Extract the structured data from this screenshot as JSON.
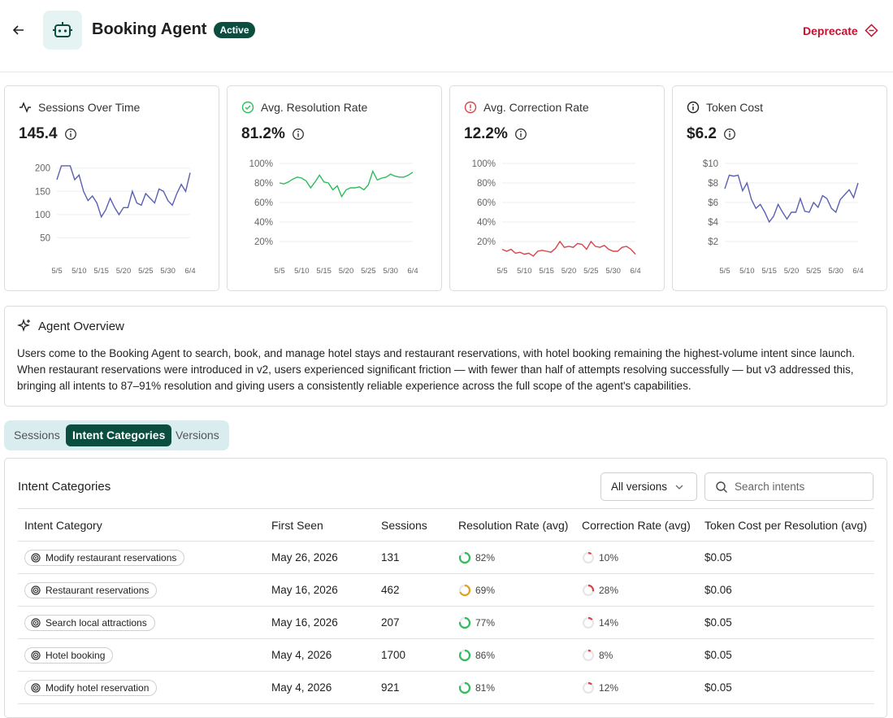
{
  "header": {
    "title": "Booking Agent",
    "status": "Active",
    "action": "Deprecate"
  },
  "cards": [
    {
      "title": "Sessions Over Time",
      "value": "145.4",
      "chart": {
        "type": "line",
        "color": "#5b5fb3",
        "categories": [
          "5/5",
          null,
          null,
          null,
          null,
          "5/10",
          null,
          null,
          null,
          null,
          "5/15",
          null,
          null,
          null,
          null,
          "5/20",
          null,
          null,
          null,
          null,
          "5/25",
          null,
          null,
          null,
          null,
          "5/30",
          null,
          null,
          null,
          null,
          "6/4"
        ],
        "values": [
          175,
          205,
          205,
          205,
          175,
          185,
          150,
          130,
          140,
          125,
          95,
          110,
          135,
          115,
          100,
          115,
          115,
          150,
          125,
          120,
          145,
          135,
          125,
          155,
          150,
          130,
          120,
          145,
          165,
          150,
          190
        ],
        "ylim": [
          0,
          210
        ],
        "yticks": [
          50,
          100,
          150,
          200
        ],
        "grid": true
      }
    },
    {
      "title": "Avg. Resolution Rate",
      "value": "81.2%",
      "chart": {
        "type": "line",
        "color": "#2dbd5c",
        "categories": [
          "5/5",
          null,
          null,
          null,
          null,
          "5/10",
          null,
          null,
          null,
          null,
          "5/15",
          null,
          null,
          null,
          null,
          "5/20",
          null,
          null,
          null,
          null,
          "5/25",
          null,
          null,
          null,
          null,
          "5/30",
          null,
          null,
          null,
          null,
          "6/4"
        ],
        "values": [
          80,
          79,
          81,
          84,
          86,
          85,
          82,
          75,
          81,
          88,
          81,
          80,
          73,
          77,
          66,
          73,
          75,
          75,
          76,
          73,
          78,
          92,
          83,
          85,
          86,
          89,
          87,
          86,
          86,
          88,
          91
        ],
        "ylim": [
          0,
          100
        ],
        "yticks": [
          {
            "value": 20,
            "label": "20%"
          },
          {
            "value": 40,
            "label": "40%"
          },
          {
            "value": 60,
            "label": "60%"
          },
          {
            "value": 80,
            "label": "80%"
          },
          {
            "value": 100,
            "label": "100%"
          }
        ],
        "grid": true
      }
    },
    {
      "title": "Avg. Correction Rate",
      "value": "12.2%",
      "chart": {
        "type": "line",
        "color": "#d9444a",
        "categories": [
          "5/5",
          null,
          null,
          null,
          null,
          "5/10",
          null,
          null,
          null,
          null,
          "5/15",
          null,
          null,
          null,
          null,
          "5/20",
          null,
          null,
          null,
          null,
          "5/25",
          null,
          null,
          null,
          null,
          "5/30",
          null,
          null,
          null,
          null,
          "6/4"
        ],
        "values": [
          12,
          10,
          12,
          8,
          9,
          7,
          8,
          5,
          10,
          11,
          10,
          9,
          13,
          20,
          14,
          15,
          14,
          18,
          17,
          12,
          20,
          15,
          14,
          16,
          12,
          10,
          10,
          14,
          15,
          12,
          7
        ],
        "ylim": [
          0,
          100
        ],
        "yticks": [
          {
            "value": 20,
            "label": "20%"
          },
          {
            "value": 40,
            "label": "40%"
          },
          {
            "value": 60,
            "label": "60%"
          },
          {
            "value": 80,
            "label": "80%"
          },
          {
            "value": 100,
            "label": "100%"
          }
        ],
        "grid": true
      }
    },
    {
      "title": "Token Cost",
      "value": "$6.2",
      "chart": {
        "type": "line",
        "color": "#5b5fb3",
        "categories": [
          "5/5",
          null,
          null,
          null,
          null,
          "5/10",
          null,
          null,
          null,
          null,
          "5/15",
          null,
          null,
          null,
          null,
          "5/20",
          null,
          null,
          null,
          null,
          "5/25",
          null,
          null,
          null,
          null,
          "5/30",
          null,
          null,
          null,
          null,
          "6/4"
        ],
        "values": [
          7.4,
          8.8,
          8.7,
          8.8,
          7.2,
          8,
          6.3,
          5.4,
          5.8,
          5,
          4,
          4.6,
          5.8,
          5,
          4.3,
          5,
          5,
          6.4,
          5.1,
          5,
          6,
          5.5,
          6.7,
          6.4,
          5.4,
          5,
          6.3,
          6.8,
          7.3,
          6.5,
          8
        ],
        "ylim": [
          0,
          10
        ],
        "yticks": [
          {
            "value": 2,
            "label": "$2"
          },
          {
            "value": 4,
            "label": "$4"
          },
          {
            "value": 6,
            "label": "$6"
          },
          {
            "value": 8,
            "label": "$8"
          },
          {
            "value": 10,
            "label": "$10"
          }
        ],
        "grid": true
      }
    }
  ],
  "overview": {
    "title": "Agent Overview",
    "text": "Users come to the Booking Agent to search, book, and manage hotel stays and restaurant reservations, with hotel booking remaining the highest-volume intent since launch. When restaurant reservations were introduced in v2, users experienced significant friction — with fewer than half of attempts resolving successfully — but v3 addressed this, bringing all intents to 87–91% resolution and giving users a consistently reliable experience across the full scope of the agent's capabilities."
  },
  "tabs": [
    "Sessions",
    "Intent Categories",
    "Versions"
  ],
  "active_tab": 1,
  "table": {
    "title": "Intent Categories",
    "filter": "All versions",
    "search_placeholder": "Search intents",
    "columns": [
      "Intent Category",
      "First Seen",
      "Sessions",
      "Resolution Rate (avg)",
      "Correction Rate (avg)",
      "Token Cost per Resolution (avg)"
    ],
    "rows": [
      {
        "intent": "Modify restaurant reservations",
        "first_seen": "May 26, 2026",
        "sessions": 131,
        "resolution_rate": {
          "value": 82,
          "label": "82%",
          "color": "#2dbd5c"
        },
        "correction_rate": {
          "value": 10,
          "label": "10%",
          "color": "#d9444a"
        },
        "token_cost": "$0.05"
      },
      {
        "intent": "Restaurant reservations",
        "first_seen": "May 16, 2026",
        "sessions": 462,
        "resolution_rate": {
          "value": 69,
          "label": "69%",
          "color": "#e0a020"
        },
        "correction_rate": {
          "value": 28,
          "label": "28%",
          "color": "#d9444a"
        },
        "token_cost": "$0.06"
      },
      {
        "intent": "Search local attractions",
        "first_seen": "May 16, 2026",
        "sessions": 207,
        "resolution_rate": {
          "value": 77,
          "label": "77%",
          "color": "#2dbd5c"
        },
        "correction_rate": {
          "value": 14,
          "label": "14%",
          "color": "#d9444a"
        },
        "token_cost": "$0.05"
      },
      {
        "intent": "Hotel booking",
        "first_seen": "May 4, 2026",
        "sessions": 1700,
        "resolution_rate": {
          "value": 86,
          "label": "86%",
          "color": "#2dbd5c"
        },
        "correction_rate": {
          "value": 8,
          "label": "8%",
          "color": "#d9444a"
        },
        "token_cost": "$0.05"
      },
      {
        "intent": "Modify hotel reservation",
        "first_seen": "May 4, 2026",
        "sessions": 921,
        "resolution_rate": {
          "value": 81,
          "label": "81%",
          "color": "#2dbd5c"
        },
        "correction_rate": {
          "value": 12,
          "label": "12%",
          "color": "#d9444a"
        },
        "token_cost": "$0.05"
      }
    ]
  }
}
